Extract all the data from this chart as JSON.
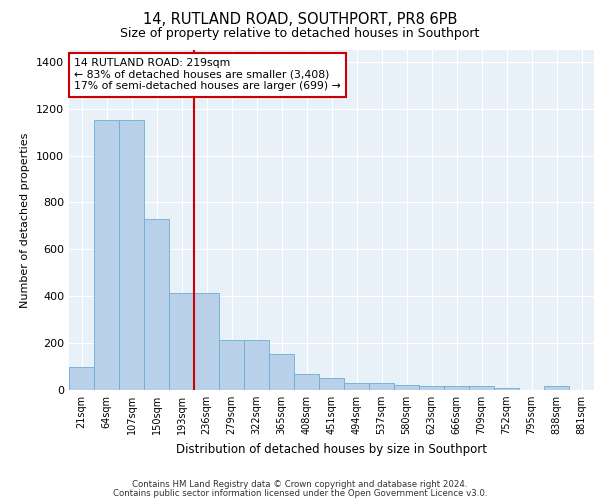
{
  "title1": "14, RUTLAND ROAD, SOUTHPORT, PR8 6PB",
  "title2": "Size of property relative to detached houses in Southport",
  "xlabel": "Distribution of detached houses by size in Southport",
  "ylabel": "Number of detached properties",
  "categories": [
    "21sqm",
    "64sqm",
    "107sqm",
    "150sqm",
    "193sqm",
    "236sqm",
    "279sqm",
    "322sqm",
    "365sqm",
    "408sqm",
    "451sqm",
    "494sqm",
    "537sqm",
    "580sqm",
    "623sqm",
    "666sqm",
    "709sqm",
    "752sqm",
    "795sqm",
    "838sqm",
    "881sqm"
  ],
  "values": [
    100,
    1150,
    1150,
    730,
    415,
    415,
    215,
    215,
    155,
    70,
    50,
    30,
    30,
    20,
    15,
    15,
    15,
    10,
    2,
    15,
    0
  ],
  "bar_color": "#b8d0e8",
  "bar_edge_color": "#6baed6",
  "marker_index": 5,
  "marker_color": "#cc0000",
  "annotation_line1": "14 RUTLAND ROAD: 219sqm",
  "annotation_line2": "← 83% of detached houses are smaller (3,408)",
  "annotation_line3": "17% of semi-detached houses are larger (699) →",
  "annotation_box_color": "#ffffff",
  "annotation_box_edge": "#cc0000",
  "ylim": [
    0,
    1450
  ],
  "yticks": [
    0,
    200,
    400,
    600,
    800,
    1000,
    1200,
    1400
  ],
  "footer1": "Contains HM Land Registry data © Crown copyright and database right 2024.",
  "footer2": "Contains public sector information licensed under the Open Government Licence v3.0.",
  "bg_color": "#e8f0f8",
  "grid_color": "#ffffff"
}
